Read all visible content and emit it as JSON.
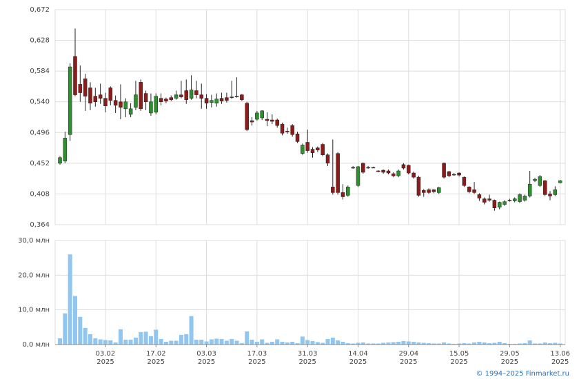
{
  "chart_data": [
    {
      "type": "candlestick",
      "open": [
        0.452,
        0.455,
        0.493,
        0.605,
        0.565,
        0.573,
        0.56,
        0.548,
        0.55,
        0.545,
        0.56,
        0.542,
        0.54,
        0.53,
        0.522,
        0.532,
        0.568,
        0.552,
        0.524,
        0.525,
        0.545,
        0.544,
        0.546,
        0.545,
        0.55,
        0.556,
        0.545,
        0.556,
        0.55,
        0.545,
        0.539,
        0.538,
        0.545,
        0.546,
        0.547,
        0.548,
        0.55,
        0.538,
        0.513,
        0.515,
        0.517,
        0.515,
        0.514,
        0.514,
        0.508,
        0.498,
        0.506,
        0.494,
        0.466,
        0.482,
        0.472,
        0.474,
        0.479,
        0.464,
        0.418,
        0.466,
        0.41,
        0.406,
        0.446,
        0.42,
        0.452,
        0.446,
        0.446,
        0.441,
        0.442,
        0.441,
        0.437,
        0.434,
        0.45,
        0.449,
        0.438,
        0.432,
        0.413,
        0.414,
        0.414,
        0.41,
        0.452,
        0.44,
        0.436,
        0.438,
        0.432,
        0.418,
        0.414,
        0.407,
        0.401,
        0.401,
        0.399,
        0.389,
        0.393,
        0.399,
        0.398,
        0.397,
        0.399,
        0.405,
        0.427,
        0.42,
        0.427,
        0.408,
        0.407,
        0.424
      ],
      "high": [
        0.462,
        0.497,
        0.595,
        0.645,
        0.592,
        0.58,
        0.568,
        0.56,
        0.566,
        0.553,
        0.562,
        0.549,
        0.565,
        0.545,
        0.538,
        0.57,
        0.572,
        0.556,
        0.552,
        0.552,
        0.552,
        0.546,
        0.549,
        0.556,
        0.57,
        0.572,
        0.578,
        0.57,
        0.566,
        0.551,
        0.55,
        0.552,
        0.553,
        0.553,
        0.57,
        0.575,
        0.551,
        0.54,
        0.518,
        0.527,
        0.528,
        0.525,
        0.522,
        0.516,
        0.51,
        0.503,
        0.508,
        0.497,
        0.48,
        0.5,
        0.475,
        0.476,
        0.481,
        0.466,
        0.486,
        0.468,
        0.422,
        0.42,
        0.448,
        0.448,
        0.453,
        0.448,
        0.447,
        0.442,
        0.443,
        0.443,
        0.439,
        0.443,
        0.452,
        0.45,
        0.44,
        0.434,
        0.415,
        0.416,
        0.415,
        0.418,
        0.453,
        0.441,
        0.438,
        0.439,
        0.433,
        0.419,
        0.425,
        0.409,
        0.403,
        0.407,
        0.4,
        0.397,
        0.399,
        0.401,
        0.403,
        0.409,
        0.407,
        0.441,
        0.431,
        0.435,
        0.428,
        0.412,
        0.419,
        0.428
      ],
      "low": [
        0.45,
        0.452,
        0.484,
        0.548,
        0.54,
        0.527,
        0.528,
        0.533,
        0.537,
        0.525,
        0.535,
        0.524,
        0.515,
        0.518,
        0.518,
        0.528,
        0.527,
        0.528,
        0.52,
        0.522,
        0.535,
        0.538,
        0.541,
        0.543,
        0.545,
        0.537,
        0.543,
        0.545,
        0.53,
        0.53,
        0.532,
        0.533,
        0.537,
        0.539,
        0.544,
        0.546,
        0.541,
        0.498,
        0.506,
        0.513,
        0.514,
        0.505,
        0.508,
        0.503,
        0.492,
        0.494,
        0.49,
        0.481,
        0.464,
        0.467,
        0.46,
        0.468,
        0.462,
        0.448,
        0.407,
        0.407,
        0.4,
        0.404,
        0.444,
        0.418,
        0.437,
        0.444,
        0.445,
        0.439,
        0.437,
        0.436,
        0.432,
        0.432,
        0.443,
        0.436,
        0.43,
        0.404,
        0.404,
        0.408,
        0.409,
        0.408,
        0.43,
        0.432,
        0.434,
        0.433,
        0.418,
        0.409,
        0.408,
        0.398,
        0.393,
        0.397,
        0.384,
        0.386,
        0.391,
        0.397,
        0.396,
        0.395,
        0.397,
        0.403,
        0.425,
        0.418,
        0.405,
        0.399,
        0.405,
        0.423
      ],
      "close": [
        0.46,
        0.488,
        0.59,
        0.55,
        0.553,
        0.548,
        0.538,
        0.54,
        0.545,
        0.534,
        0.542,
        0.535,
        0.532,
        0.54,
        0.53,
        0.55,
        0.53,
        0.54,
        0.54,
        0.548,
        0.54,
        0.541,
        0.543,
        0.55,
        0.547,
        0.543,
        0.557,
        0.55,
        0.545,
        0.538,
        0.542,
        0.544,
        0.541,
        0.542,
        0.546,
        0.548,
        0.543,
        0.5,
        0.511,
        0.524,
        0.527,
        0.513,
        0.512,
        0.506,
        0.495,
        0.497,
        0.493,
        0.483,
        0.478,
        0.47,
        0.467,
        0.471,
        0.464,
        0.452,
        0.41,
        0.41,
        0.404,
        0.418,
        0.445,
        0.447,
        0.439,
        0.446,
        0.446,
        0.44,
        0.439,
        0.438,
        0.434,
        0.441,
        0.445,
        0.438,
        0.432,
        0.406,
        0.41,
        0.41,
        0.411,
        0.417,
        0.432,
        0.434,
        0.436,
        0.435,
        0.42,
        0.411,
        0.41,
        0.402,
        0.396,
        0.399,
        0.388,
        0.396,
        0.397,
        0.399,
        0.401,
        0.407,
        0.405,
        0.422,
        0.429,
        0.433,
        0.407,
        0.405,
        0.414,
        0.427
      ],
      "up_color": "#2f8f2f",
      "down_color": "#8b1c1c",
      "ylim": [
        0.364,
        0.672
      ],
      "yticks": [
        {
          "value": 0.364,
          "label": "0,364"
        },
        {
          "value": 0.408,
          "label": "0,408"
        },
        {
          "value": 0.452,
          "label": "0,452"
        },
        {
          "value": 0.496,
          "label": "0,496"
        },
        {
          "value": 0.54,
          "label": "0,540"
        },
        {
          "value": 0.584,
          "label": "0,584"
        },
        {
          "value": 0.628,
          "label": "0,628"
        },
        {
          "value": 0.672,
          "label": "0,672"
        }
      ],
      "grid": true
    },
    {
      "type": "bar",
      "categories": [
        null,
        null,
        null,
        null,
        null,
        null,
        null,
        null,
        null,
        "03.02 2025",
        null,
        null,
        null,
        null,
        null,
        null,
        null,
        null,
        null,
        "17.02 2025",
        null,
        null,
        null,
        null,
        null,
        null,
        null,
        null,
        null,
        "03.03 2025",
        null,
        null,
        null,
        null,
        null,
        null,
        null,
        null,
        null,
        "17.03 2025",
        null,
        null,
        null,
        null,
        null,
        null,
        null,
        null,
        null,
        "31.03 2025",
        null,
        null,
        null,
        null,
        null,
        null,
        null,
        null,
        null,
        "14.04 2025",
        null,
        null,
        null,
        null,
        null,
        null,
        null,
        null,
        null,
        "29.04 2025",
        null,
        null,
        null,
        null,
        null,
        null,
        null,
        null,
        null,
        "15.05 2025",
        null,
        null,
        null,
        null,
        null,
        null,
        null,
        null,
        null,
        "29.05 2025",
        null,
        null,
        null,
        null,
        null,
        null,
        null,
        null,
        null,
        "13.06 2025"
      ],
      "values": [
        1.8,
        9,
        26,
        14,
        8,
        4.8,
        3,
        1.8,
        1.5,
        1.3,
        1.2,
        0.6,
        4.4,
        1.4,
        1.4,
        2,
        3.6,
        3.7,
        2.4,
        4.3,
        1.6,
        0.8,
        1.1,
        1.1,
        2.8,
        3,
        8.2,
        1.4,
        1.4,
        0.9,
        1.5,
        1.7,
        1.6,
        1.1,
        1.6,
        1.1,
        0.4,
        3.8,
        1.4,
        0.8,
        1.5,
        0.5,
        0.8,
        1.5,
        0.8,
        0.6,
        0.8,
        0.4,
        2.3,
        1.3,
        1.0,
        0.7,
        0.5,
        1.6,
        2.0,
        1.2,
        0.8,
        0.4,
        0.3,
        0.5,
        0.6,
        0.3,
        0.3,
        0.3,
        0.5,
        0.6,
        0.7,
        0.8,
        1.0,
        0.9,
        0.8,
        0.6,
        0.5,
        0.4,
        0.3,
        0.3,
        0.6,
        0.3,
        0.2,
        0.3,
        0.4,
        0.3,
        0.6,
        0.8,
        0.6,
        0.4,
        0.5,
        0.8,
        0.4,
        0.2,
        0.2,
        0.3,
        0.4,
        1.2,
        0.3,
        0.3,
        0.6,
        0.4,
        0.5,
        0.3
      ],
      "color": "#90c6ef",
      "ylim": [
        0,
        30
      ],
      "yticks": [
        {
          "value": 0,
          "label": "0,0 млн"
        },
        {
          "value": 10,
          "label": "10,0 млн"
        },
        {
          "value": 20,
          "label": "20,0 млн"
        },
        {
          "value": 30,
          "label": "30,0 млн"
        }
      ],
      "grid": true
    }
  ],
  "footer": "© 1994–2025 Finmarket.ru"
}
